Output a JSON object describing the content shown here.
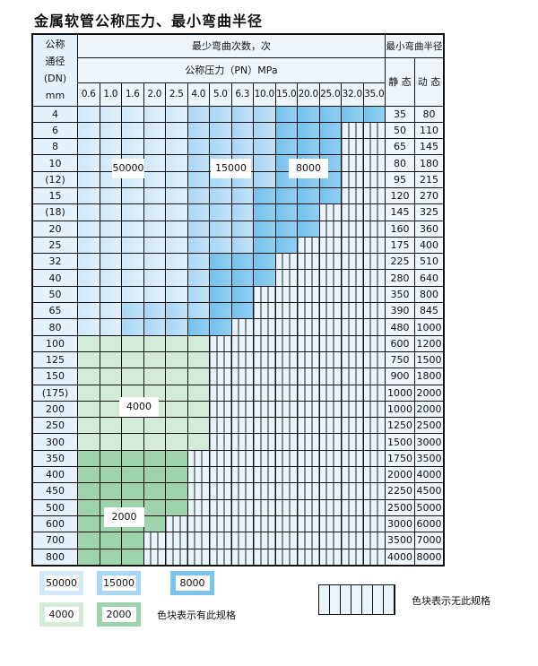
{
  "title": "金属软管公称压力、最小弯曲半径",
  "header": {
    "dn_label": [
      "公称",
      "通径",
      "(DN)",
      "mm"
    ],
    "cycles_label": "最少弯曲次数，次",
    "pressure_label": "公称压力（PN）MPa",
    "radius_label": "最小弯曲半径",
    "static_label": "静 态",
    "dynamic_label": "动 态"
  },
  "pressures": [
    "0.6",
    "1.0",
    "1.6",
    "2.0",
    "2.5",
    "4.0",
    "5.0",
    "6.3",
    "10.0",
    "15.0",
    "20.0",
    "25.0",
    "32.0",
    "35.0"
  ],
  "cell_legend": {
    "L": "50000",
    "M": "15000",
    "D": "8000",
    "G1": "4000",
    "G2": "2000",
    "N": "无此规格"
  },
  "rows": [
    {
      "dn": "4",
      "static": "35",
      "dynamic": "80",
      "cells": [
        "L",
        "L",
        "L",
        "L",
        "L",
        "M",
        "M",
        "M",
        "M",
        "D",
        "D",
        "D",
        "D",
        "D"
      ]
    },
    {
      "dn": "6",
      "static": "50",
      "dynamic": "110",
      "cells": [
        "L",
        "L",
        "L",
        "L",
        "L",
        "M",
        "M",
        "M",
        "M",
        "D",
        "D",
        "D",
        "N",
        "N"
      ]
    },
    {
      "dn": "8",
      "static": "65",
      "dynamic": "145",
      "cells": [
        "L",
        "L",
        "L",
        "L",
        "L",
        "M",
        "M",
        "M",
        "M",
        "D",
        "D",
        "D",
        "N",
        "N"
      ]
    },
    {
      "dn": "10",
      "static": "80",
      "dynamic": "180",
      "cells": [
        "L",
        "L",
        "L",
        "L",
        "L",
        "M",
        "M",
        "M",
        "M",
        "D",
        "D",
        "D",
        "N",
        "N"
      ]
    },
    {
      "dn": "(12)",
      "static": "95",
      "dynamic": "215",
      "cells": [
        "L",
        "L",
        "L",
        "L",
        "L",
        "M",
        "M",
        "M",
        "M",
        "D",
        "D",
        "D",
        "N",
        "N"
      ]
    },
    {
      "dn": "15",
      "static": "120",
      "dynamic": "270",
      "cells": [
        "L",
        "L",
        "L",
        "L",
        "L",
        "M",
        "M",
        "M",
        "D",
        "D",
        "D",
        "D",
        "N",
        "N"
      ]
    },
    {
      "dn": "(18)",
      "static": "145",
      "dynamic": "325",
      "cells": [
        "L",
        "L",
        "L",
        "L",
        "L",
        "M",
        "M",
        "M",
        "D",
        "D",
        "D",
        "N",
        "N",
        "N"
      ]
    },
    {
      "dn": "20",
      "static": "160",
      "dynamic": "360",
      "cells": [
        "L",
        "L",
        "L",
        "L",
        "L",
        "M",
        "M",
        "M",
        "D",
        "D",
        "D",
        "N",
        "N",
        "N"
      ]
    },
    {
      "dn": "25",
      "static": "175",
      "dynamic": "400",
      "cells": [
        "L",
        "L",
        "L",
        "L",
        "L",
        "M",
        "M",
        "M",
        "D",
        "D",
        "N",
        "N",
        "N",
        "N"
      ]
    },
    {
      "dn": "32",
      "static": "225",
      "dynamic": "510",
      "cells": [
        "L",
        "L",
        "L",
        "L",
        "L",
        "M",
        "D",
        "D",
        "D",
        "N",
        "N",
        "N",
        "N",
        "N"
      ]
    },
    {
      "dn": "40",
      "static": "280",
      "dynamic": "640",
      "cells": [
        "L",
        "L",
        "L",
        "L",
        "L",
        "M",
        "D",
        "D",
        "D",
        "N",
        "N",
        "N",
        "N",
        "N"
      ]
    },
    {
      "dn": "50",
      "static": "350",
      "dynamic": "800",
      "cells": [
        "L",
        "L",
        "L",
        "L",
        "L",
        "M",
        "D",
        "D",
        "N",
        "N",
        "N",
        "N",
        "N",
        "N"
      ]
    },
    {
      "dn": "65",
      "static": "390",
      "dynamic": "845",
      "cells": [
        "L",
        "L",
        "M",
        "M",
        "M",
        "M",
        "D",
        "D",
        "N",
        "N",
        "N",
        "N",
        "N",
        "N"
      ]
    },
    {
      "dn": "80",
      "static": "480",
      "dynamic": "1000",
      "cells": [
        "L",
        "L",
        "M",
        "M",
        "M",
        "D",
        "D",
        "N",
        "N",
        "N",
        "N",
        "N",
        "N",
        "N"
      ]
    },
    {
      "dn": "100",
      "static": "600",
      "dynamic": "1200",
      "cells": [
        "G1",
        "G1",
        "G1",
        "G1",
        "G1",
        "G1",
        "N",
        "N",
        "N",
        "N",
        "N",
        "N",
        "N",
        "N"
      ]
    },
    {
      "dn": "125",
      "static": "750",
      "dynamic": "1500",
      "cells": [
        "G1",
        "G1",
        "G1",
        "G1",
        "G1",
        "G1",
        "N",
        "N",
        "N",
        "N",
        "N",
        "N",
        "N",
        "N"
      ]
    },
    {
      "dn": "150",
      "static": "900",
      "dynamic": "1800",
      "cells": [
        "G1",
        "G1",
        "G1",
        "G1",
        "G1",
        "G1",
        "N",
        "N",
        "N",
        "N",
        "N",
        "N",
        "N",
        "N"
      ]
    },
    {
      "dn": "(175)",
      "static": "1000",
      "dynamic": "2000",
      "cells": [
        "G1",
        "G1",
        "G1",
        "G1",
        "G1",
        "G1",
        "N",
        "N",
        "N",
        "N",
        "N",
        "N",
        "N",
        "N"
      ]
    },
    {
      "dn": "200",
      "static": "1000",
      "dynamic": "2000",
      "cells": [
        "G1",
        "G1",
        "G1",
        "G1",
        "G1",
        "G1",
        "N",
        "N",
        "N",
        "N",
        "N",
        "N",
        "N",
        "N"
      ]
    },
    {
      "dn": "250",
      "static": "1250",
      "dynamic": "2500",
      "cells": [
        "G1",
        "G1",
        "G1",
        "G1",
        "G1",
        "G1",
        "N",
        "N",
        "N",
        "N",
        "N",
        "N",
        "N",
        "N"
      ]
    },
    {
      "dn": "300",
      "static": "1500",
      "dynamic": "3000",
      "cells": [
        "G1",
        "G1",
        "G1",
        "G1",
        "G1",
        "G1",
        "N",
        "N",
        "N",
        "N",
        "N",
        "N",
        "N",
        "N"
      ]
    },
    {
      "dn": "350",
      "static": "1750",
      "dynamic": "3500",
      "cells": [
        "G2",
        "G2",
        "G2",
        "G2",
        "G2",
        "N",
        "N",
        "N",
        "N",
        "N",
        "N",
        "N",
        "N",
        "N"
      ]
    },
    {
      "dn": "400",
      "static": "2000",
      "dynamic": "4000",
      "cells": [
        "G2",
        "G2",
        "G2",
        "G2",
        "G2",
        "N",
        "N",
        "N",
        "N",
        "N",
        "N",
        "N",
        "N",
        "N"
      ]
    },
    {
      "dn": "450",
      "static": "2250",
      "dynamic": "4500",
      "cells": [
        "G2",
        "G2",
        "G2",
        "G2",
        "G2",
        "N",
        "N",
        "N",
        "N",
        "N",
        "N",
        "N",
        "N",
        "N"
      ]
    },
    {
      "dn": "500",
      "static": "2500",
      "dynamic": "5000",
      "cells": [
        "G2",
        "G2",
        "G2",
        "G2",
        "G2",
        "N",
        "N",
        "N",
        "N",
        "N",
        "N",
        "N",
        "N",
        "N"
      ]
    },
    {
      "dn": "600",
      "static": "3000",
      "dynamic": "6000",
      "cells": [
        "G2",
        "G2",
        "G2",
        "G2",
        "N",
        "N",
        "N",
        "N",
        "N",
        "N",
        "N",
        "N",
        "N",
        "N"
      ]
    },
    {
      "dn": "700",
      "static": "3500",
      "dynamic": "7000",
      "cells": [
        "G2",
        "G2",
        "G2",
        "N",
        "N",
        "N",
        "N",
        "N",
        "N",
        "N",
        "N",
        "N",
        "N",
        "N"
      ]
    },
    {
      "dn": "800",
      "static": "4000",
      "dynamic": "8000",
      "cells": [
        "G2",
        "G2",
        "G2",
        "N",
        "N",
        "N",
        "N",
        "N",
        "N",
        "N",
        "N",
        "N",
        "N",
        "N"
      ]
    }
  ],
  "region_labels": {
    "l": "50000",
    "m": "15000",
    "d": "8000",
    "g1": "4000",
    "g2": "2000"
  },
  "legend": {
    "items": [
      {
        "value": "50000",
        "color": "#d3e9f8"
      },
      {
        "value": "15000",
        "color": "#a9d7f3"
      },
      {
        "value": "8000",
        "color": "#7cc4ee"
      },
      {
        "value": "4000",
        "color": "#d3ebd8"
      },
      {
        "value": "2000",
        "color": "#9fd3ad"
      }
    ],
    "has_spec_text": "色块表示有此规格",
    "no_spec_text": "色块表示无此规格"
  }
}
